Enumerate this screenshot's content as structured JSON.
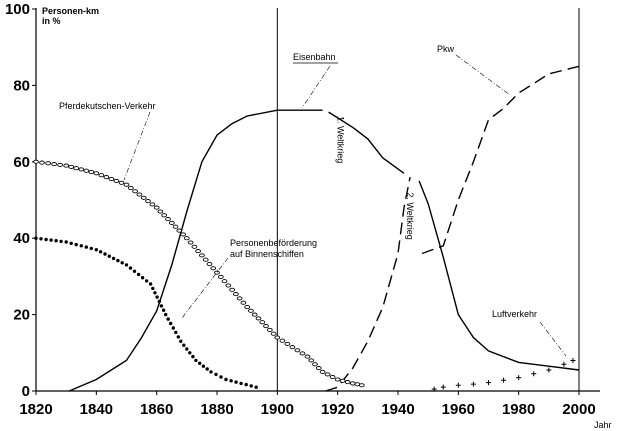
{
  "chart_data": {
    "type": "line",
    "title": "",
    "ylabel": "Personen-km in %",
    "ylabel_lines": [
      "Personen-km",
      "in %"
    ],
    "xlabel": "Jahr",
    "xlim": [
      1820,
      2000
    ],
    "ylim": [
      0,
      100
    ],
    "x_ticks": [
      1820,
      1840,
      1860,
      1880,
      1900,
      1920,
      1940,
      1960,
      1980,
      2000
    ],
    "y_ticks": [
      0,
      20,
      40,
      60,
      80,
      100
    ],
    "grid": false,
    "series": [
      {
        "name": "Eisenbahn",
        "style": "solid",
        "segments": [
          [
            [
              1831,
              0
            ],
            [
              1840,
              3
            ],
            [
              1850,
              8
            ],
            [
              1855,
              14
            ],
            [
              1860,
              21
            ],
            [
              1865,
              33
            ],
            [
              1870,
              47
            ],
            [
              1875,
              60
            ],
            [
              1880,
              67
            ],
            [
              1885,
              70
            ],
            [
              1890,
              72
            ],
            [
              1900,
              73.5
            ],
            [
              1910,
              73.5
            ],
            [
              1915,
              73.5
            ]
          ],
          [
            [
              1917,
              73
            ],
            [
              1925,
              69
            ],
            [
              1930,
              66
            ],
            [
              1935,
              61
            ],
            [
              1942,
              57
            ]
          ],
          [
            [
              1947,
              55
            ],
            [
              1950,
              49
            ],
            [
              1955,
              35
            ],
            [
              1960,
              20
            ],
            [
              1965,
              14
            ],
            [
              1970,
              10.5
            ],
            [
              1980,
              7.5
            ],
            [
              1990,
              6.5
            ],
            [
              2000,
              5.5
            ]
          ]
        ]
      },
      {
        "name": "Pkw",
        "style": "dashed",
        "segments": [
          [
            [
              1916,
              0
            ],
            [
              1920,
              1
            ],
            [
              1925,
              6
            ],
            [
              1930,
              13
            ],
            [
              1935,
              22
            ],
            [
              1940,
              36
            ],
            [
              1942,
              48
            ],
            [
              1944,
              56
            ]
          ],
          [
            [
              1948,
              36
            ],
            [
              1955,
              38
            ],
            [
              1960,
              50
            ],
            [
              1965,
              60
            ],
            [
              1970,
              71
            ],
            [
              1975,
              74
            ],
            [
              1980,
              78
            ],
            [
              1990,
              83
            ],
            [
              2000,
              85
            ]
          ]
        ]
      },
      {
        "name": "Pferdekutschen-Verkehr",
        "style": "open-circles",
        "points": [
          [
            1820,
            60
          ],
          [
            1830,
            59
          ],
          [
            1840,
            57
          ],
          [
            1850,
            54
          ],
          [
            1860,
            48
          ],
          [
            1870,
            40
          ],
          [
            1880,
            31
          ],
          [
            1890,
            22
          ],
          [
            1900,
            14
          ],
          [
            1910,
            9
          ],
          [
            1915,
            5
          ],
          [
            1920,
            3
          ],
          [
            1925,
            2
          ],
          [
            1928,
            1.5
          ]
        ]
      },
      {
        "name": "Personenbeförderung auf Binnenschiffen",
        "style": "dots",
        "points": [
          [
            1820,
            40
          ],
          [
            1830,
            39
          ],
          [
            1840,
            37
          ],
          [
            1850,
            33
          ],
          [
            1858,
            28
          ],
          [
            1863,
            20
          ],
          [
            1868,
            13
          ],
          [
            1873,
            8
          ],
          [
            1878,
            5
          ],
          [
            1883,
            3
          ],
          [
            1888,
            2
          ],
          [
            1893,
            1
          ]
        ]
      },
      {
        "name": "Luftverkehr",
        "style": "crosses",
        "points": [
          [
            1952,
            0.5
          ],
          [
            1955,
            1
          ],
          [
            1960,
            1.5
          ],
          [
            1965,
            1.8
          ],
          [
            1970,
            2.2
          ],
          [
            1975,
            2.8
          ],
          [
            1980,
            3.5
          ],
          [
            1985,
            4.5
          ],
          [
            1990,
            5.5
          ],
          [
            1995,
            7
          ],
          [
            1998,
            8
          ]
        ]
      }
    ],
    "annotations": [
      {
        "text": "1. Weltkrieg",
        "x": 1920,
        "y": 72
      },
      {
        "text": "2. Weltkrieg",
        "x": 1943,
        "y": 52
      }
    ],
    "reference_lines_x": [
      1900,
      2000
    ]
  }
}
